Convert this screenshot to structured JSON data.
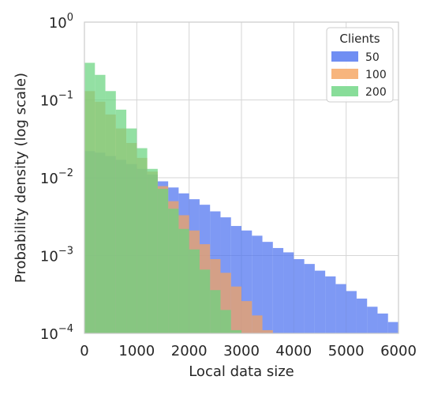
{
  "chart_data": {
    "type": "bar",
    "subtype": "overlapping histograms",
    "title": "",
    "xlabel": "Local data size",
    "ylabel": "Probability density (log scale)",
    "xlim": [
      0,
      6000
    ],
    "ylim": [
      0.0001,
      1
    ],
    "yscale": "log",
    "grid": true,
    "xticks": [
      "0",
      "1000",
      "2000",
      "3000",
      "4000",
      "5000",
      "6000"
    ],
    "yticks": [
      {
        "base": "10",
        "exp": "0",
        "value": 1
      },
      {
        "base": "10",
        "exp": "−1",
        "value": 0.1
      },
      {
        "base": "10",
        "exp": "−2",
        "value": 0.01
      },
      {
        "base": "10",
        "exp": "−3",
        "value": 0.001
      },
      {
        "base": "10",
        "exp": "−4",
        "value": 0.0001
      }
    ],
    "legend": {
      "title": "Clients",
      "placement": "top-right"
    },
    "bin_width": 200,
    "series": [
      {
        "name": "50",
        "color": "#4c72f0",
        "bins": [
          [
            0,
            200,
            0.022
          ],
          [
            200,
            400,
            0.021
          ],
          [
            400,
            600,
            0.019
          ],
          [
            600,
            800,
            0.017
          ],
          [
            800,
            1000,
            0.015
          ],
          [
            1000,
            1200,
            0.013
          ],
          [
            1200,
            1400,
            0.011
          ],
          [
            1400,
            1600,
            0.009
          ],
          [
            1600,
            1800,
            0.0075
          ],
          [
            1800,
            2000,
            0.0063
          ],
          [
            2000,
            2200,
            0.0053
          ],
          [
            2200,
            2400,
            0.0045
          ],
          [
            2400,
            2600,
            0.0037
          ],
          [
            2600,
            2800,
            0.0031
          ],
          [
            2800,
            3000,
            0.0024
          ],
          [
            3000,
            3200,
            0.0021
          ],
          [
            3200,
            3400,
            0.0018
          ],
          [
            3400,
            3600,
            0.0015
          ],
          [
            3600,
            3800,
            0.00125
          ],
          [
            3800,
            4000,
            0.0011
          ],
          [
            4000,
            4200,
            0.0009
          ],
          [
            4200,
            4400,
            0.00078
          ],
          [
            4400,
            4600,
            0.00064
          ],
          [
            4600,
            4800,
            0.00054
          ],
          [
            4800,
            5000,
            0.00043
          ],
          [
            5000,
            5200,
            0.00035
          ],
          [
            5200,
            5400,
            0.00028
          ],
          [
            5400,
            5600,
            0.00022
          ],
          [
            5600,
            5800,
            0.00018
          ],
          [
            5800,
            6000,
            0.00014
          ]
        ]
      },
      {
        "name": "100",
        "color": "#f5a25d",
        "bins": [
          [
            0,
            200,
            0.13
          ],
          [
            200,
            400,
            0.095
          ],
          [
            400,
            600,
            0.065
          ],
          [
            600,
            800,
            0.043
          ],
          [
            800,
            1000,
            0.028
          ],
          [
            1000,
            1200,
            0.018
          ],
          [
            1200,
            1400,
            0.012
          ],
          [
            1400,
            1600,
            0.0078
          ],
          [
            1600,
            1800,
            0.005
          ],
          [
            1800,
            2000,
            0.0033
          ],
          [
            2000,
            2200,
            0.0021
          ],
          [
            2200,
            2400,
            0.0014
          ],
          [
            2400,
            2600,
            0.0009
          ],
          [
            2600,
            2800,
            0.0006
          ],
          [
            2800,
            3000,
            0.0004
          ],
          [
            3000,
            3200,
            0.00026
          ],
          [
            3200,
            3400,
            0.00017
          ],
          [
            3400,
            3600,
            0.00011
          ]
        ]
      },
      {
        "name": "200",
        "color": "#6ad47f",
        "bins": [
          [
            0,
            200,
            0.3
          ],
          [
            200,
            400,
            0.21
          ],
          [
            400,
            600,
            0.13
          ],
          [
            600,
            800,
            0.075
          ],
          [
            800,
            1000,
            0.043
          ],
          [
            1000,
            1200,
            0.024
          ],
          [
            1200,
            1400,
            0.013
          ],
          [
            1400,
            1600,
            0.0072
          ],
          [
            1600,
            1800,
            0.004
          ],
          [
            1800,
            2000,
            0.0022
          ],
          [
            2000,
            2200,
            0.0012
          ],
          [
            2200,
            2400,
            0.00066
          ],
          [
            2400,
            2600,
            0.00036
          ],
          [
            2600,
            2800,
            0.0002
          ],
          [
            2800,
            3000,
            0.00011
          ]
        ]
      }
    ]
  }
}
